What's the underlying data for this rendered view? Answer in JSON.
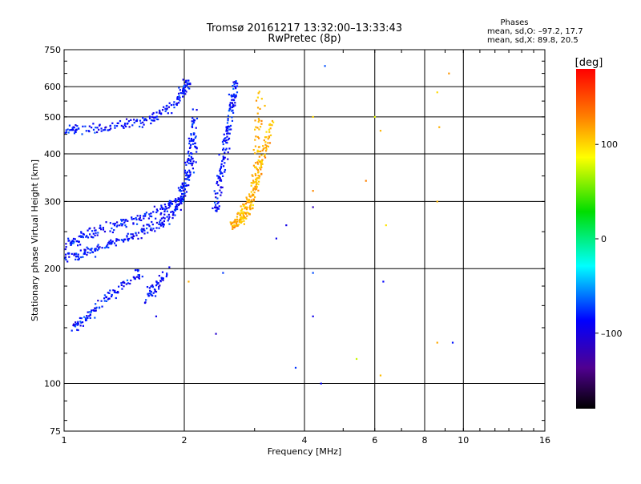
{
  "chart_data": {
    "type": "scatter",
    "title": "Tromsø 20161217 13:32:00–13:33:43",
    "subtitle": "RwPretec (8p)",
    "xlabel": "Frequency [MHz]",
    "ylabel": "Stationary phase Virtual Height [km]",
    "x_scale": "log",
    "y_scale": "log",
    "xlim": [
      1,
      16
    ],
    "ylim": [
      75,
      750
    ],
    "x_ticks": [
      1,
      2,
      4,
      6,
      8,
      10,
      16
    ],
    "y_ticks": [
      75,
      100,
      200,
      300,
      400,
      500,
      600,
      750
    ],
    "grid": true,
    "phase_stats": {
      "heading": "Phases",
      "line_o": "mean, sd,O: –97.2, 17.7",
      "line_x": "mean, sd,X:  89.8, 20.5"
    },
    "colorbar": {
      "label": "[deg]",
      "ticks": [
        100,
        0,
        -100
      ],
      "tick_labels": [
        "100",
        "0",
        "–100"
      ],
      "range": [
        -180,
        180
      ]
    },
    "series": [
      {
        "mode": "O",
        "phase_mean": -97.2,
        "phase_sd": 17.7,
        "traces": [
          {
            "x": [
              1.0,
              1.1,
              1.3,
              1.5,
              1.7,
              1.9,
              2.0,
              2.05
            ],
            "y": [
              460,
              465,
              470,
              480,
              500,
              540,
              590,
              620
            ]
          },
          {
            "x": [
              1.0,
              1.1,
              1.2,
              1.35,
              1.5,
              1.7,
              1.85,
              1.95,
              2.05,
              2.12
            ],
            "y": [
              215,
              218,
              225,
              235,
              245,
              260,
              275,
              300,
              360,
              450
            ]
          },
          {
            "x": [
              1.0,
              1.1,
              1.2,
              1.4,
              1.6,
              1.8,
              1.95,
              2.05,
              2.1,
              2.12
            ],
            "y": [
              230,
              240,
              250,
              262,
              275,
              290,
              310,
              350,
              420,
              520
            ]
          },
          {
            "x": [
              2.4,
              2.45,
              2.5,
              2.55,
              2.6,
              2.65,
              2.7
            ],
            "y": [
              280,
              330,
              380,
              440,
              500,
              560,
              620
            ]
          },
          {
            "x": [
              1.05,
              1.15,
              1.25,
              1.4,
              1.55
            ],
            "y": [
              140,
              150,
              165,
              180,
              195
            ]
          },
          {
            "x": [
              1.6,
              1.7,
              1.8
            ],
            "y": [
              165,
              180,
              195
            ]
          }
        ]
      },
      {
        "mode": "X",
        "phase_mean": 89.8,
        "phase_sd": 20.5,
        "traces": [
          {
            "x": [
              2.6,
              2.75,
              2.9,
              3.0,
              3.05,
              3.1
            ],
            "y": [
              260,
              265,
              280,
              330,
              420,
              580
            ]
          },
          {
            "x": [
              2.7,
              2.85,
              3.0,
              3.1,
              3.2,
              3.3
            ],
            "y": [
              270,
              290,
              320,
              360,
              420,
              480
            ]
          }
        ]
      }
    ],
    "scattered_points": [
      {
        "x": 4.5,
        "y": 680
      },
      {
        "x": 9.2,
        "y": 650
      },
      {
        "x": 8.6,
        "y": 580
      },
      {
        "x": 8.7,
        "y": 470
      },
      {
        "x": 6.0,
        "y": 500
      },
      {
        "x": 6.2,
        "y": 460
      },
      {
        "x": 4.2,
        "y": 500
      },
      {
        "x": 4.2,
        "y": 320
      },
      {
        "x": 4.2,
        "y": 290
      },
      {
        "x": 4.2,
        "y": 195
      },
      {
        "x": 4.2,
        "y": 150
      },
      {
        "x": 3.6,
        "y": 260
      },
      {
        "x": 3.4,
        "y": 240
      },
      {
        "x": 5.7,
        "y": 340
      },
      {
        "x": 6.4,
        "y": 260
      },
      {
        "x": 6.3,
        "y": 185
      },
      {
        "x": 6.2,
        "y": 105
      },
      {
        "x": 5.4,
        "y": 116
      },
      {
        "x": 4.4,
        "y": 100
      },
      {
        "x": 3.8,
        "y": 110
      },
      {
        "x": 8.6,
        "y": 300
      },
      {
        "x": 8.6,
        "y": 128
      },
      {
        "x": 9.4,
        "y": 128
      },
      {
        "x": 2.4,
        "y": 135
      },
      {
        "x": 1.7,
        "y": 150
      },
      {
        "x": 2.5,
        "y": 195
      },
      {
        "x": 2.05,
        "y": 185
      }
    ]
  }
}
